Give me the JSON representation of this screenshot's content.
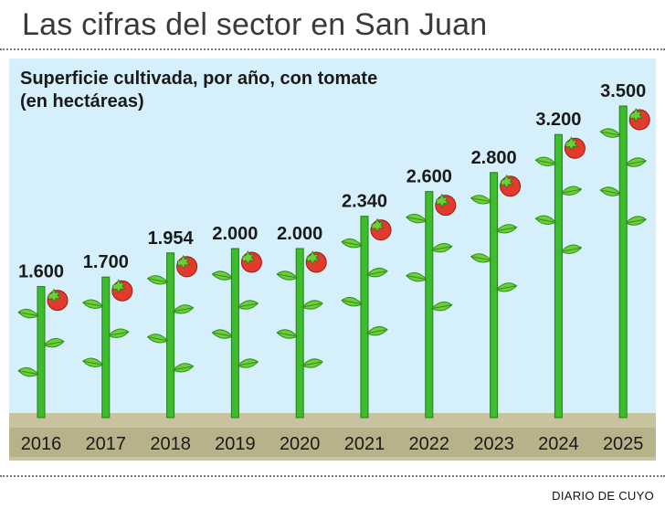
{
  "headline": "Las cifras del sector en San Juan",
  "source": "DIARIO DE CUYO",
  "colors": {
    "background": "#d5f0fa",
    "ground": "#c8c39e",
    "stem": "#3dbd2d",
    "leaf": "#6ccf35",
    "tomato": "#e23a2c",
    "text": "#1a1a1a"
  },
  "chart_data": {
    "type": "bar",
    "title": "Superficie cultivada, por año, con tomate (en hectáreas)",
    "xlabel": "",
    "ylabel": "hectáreas",
    "categories": [
      "2016",
      "2017",
      "2018",
      "2019",
      "2020",
      "2021",
      "2022",
      "2023",
      "2024",
      "2025"
    ],
    "values": [
      1600,
      1700,
      1954,
      2000,
      2000,
      2340,
      2600,
      2800,
      3200,
      3500
    ],
    "value_labels": [
      "1.600",
      "1.700",
      "1.954",
      "2.000",
      "2.000",
      "2.340",
      "2.600",
      "2.800",
      "3.200",
      "3.500"
    ],
    "ylim": [
      0,
      3700
    ],
    "grid": false,
    "legend": "none"
  }
}
